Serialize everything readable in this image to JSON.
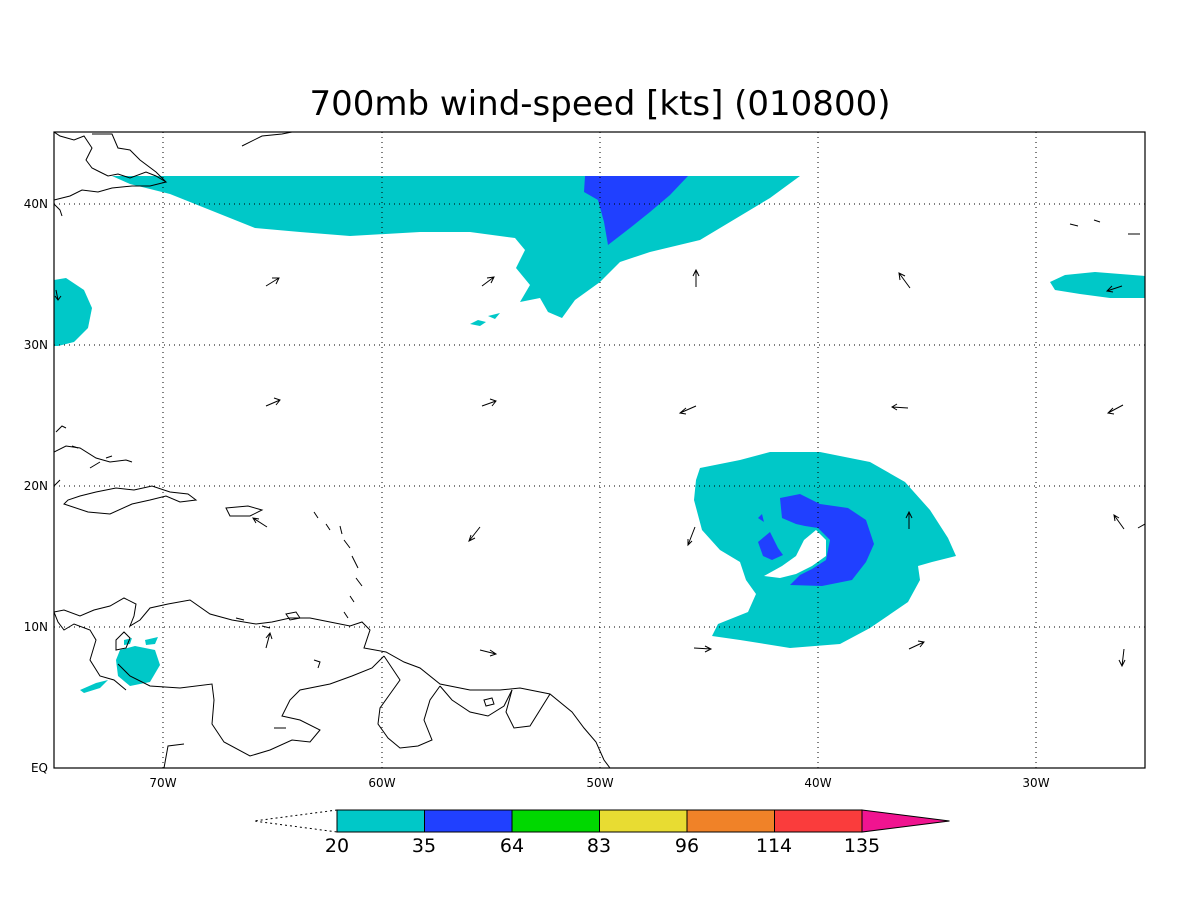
{
  "title": "700mb wind-speed [kts] (010800)",
  "map": {
    "x_ticks": [
      "70W",
      "60W",
      "50W",
      "40W",
      "30W"
    ],
    "y_ticks": [
      "40N",
      "30N",
      "20N",
      "10N",
      "EQ"
    ]
  },
  "colorbar": {
    "levels": [
      "20",
      "35",
      "64",
      "83",
      "96",
      "114",
      "135"
    ],
    "colors": [
      "#00c8c8",
      "#2040ff",
      "#00d800",
      "#e8dc32",
      "#f08228",
      "#fa3c3c",
      "#f01490"
    ]
  }
}
